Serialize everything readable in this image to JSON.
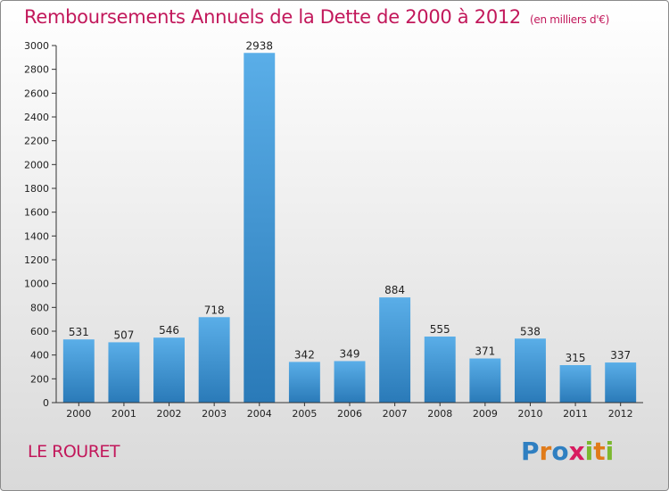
{
  "chart_data": {
    "type": "bar",
    "title": "Remboursements Annuels de la Dette de 2000 à 2012",
    "unit_note": "(en milliers d'€)",
    "categories": [
      "2000",
      "2001",
      "2002",
      "2003",
      "2004",
      "2005",
      "2006",
      "2007",
      "2008",
      "2009",
      "2010",
      "2011",
      "2012"
    ],
    "values": [
      531,
      507,
      546,
      718,
      2938,
      342,
      349,
      884,
      555,
      371,
      538,
      315,
      337
    ],
    "ylim": [
      0,
      3000
    ],
    "yticks": [
      0,
      200,
      400,
      600,
      800,
      1000,
      1200,
      1400,
      1600,
      1800,
      2000,
      2200,
      2400,
      2600,
      2800,
      3000
    ],
    "xlabel": "",
    "ylabel": "",
    "grid": false,
    "bar_color_top": "#5aaee8",
    "bar_color_bottom": "#2a7ab8"
  },
  "commune": "LE ROURET",
  "logo": {
    "letters": [
      "P",
      "r",
      "o",
      "x",
      "i",
      "t",
      "i"
    ],
    "colors": [
      "#2f7fc1",
      "#e07b1a",
      "#2f7fc1",
      "#d81b60",
      "#7cb82f",
      "#e07b1a",
      "#7cb82f"
    ]
  },
  "colors": {
    "title": "#c2185b",
    "axis": "#333333"
  }
}
